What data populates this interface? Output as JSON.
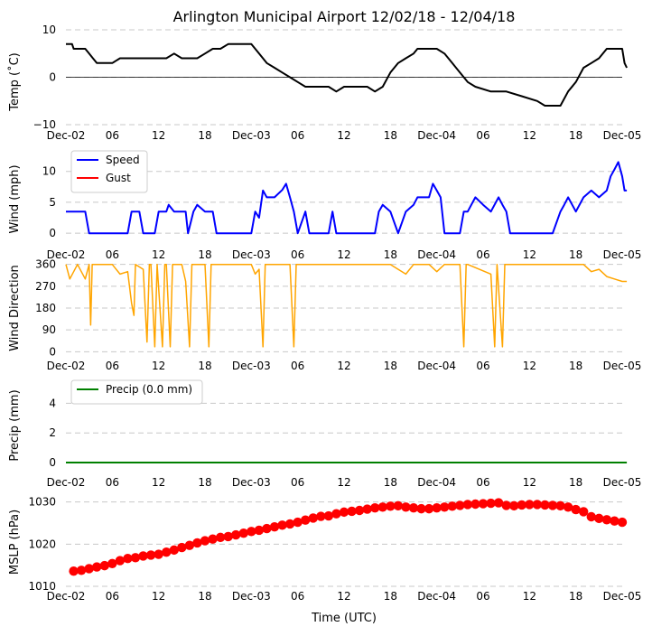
{
  "title": "Arlington Municipal Airport 12/02/18 - 12/04/18",
  "xlabel": "Time (UTC)",
  "colors": {
    "temp": "#000000",
    "speed": "#0000ff",
    "gust": "#ff0000",
    "direction": "#ffa500",
    "precip": "#008000",
    "mslp": "#ff0000"
  },
  "chart_data": [
    {
      "type": "line",
      "id": "temp",
      "ylabel": "Temp ($^\\circ$C)",
      "ylabel_text": "Temp (˚C)",
      "ylim": [
        -10,
        10
      ],
      "yticks": [
        "10",
        "0",
        "−10"
      ],
      "ytick_values": [
        10,
        0,
        -10
      ],
      "hline": 0,
      "xlim_hours": [
        0,
        72
      ],
      "xtick_labels": [
        "Dec-02",
        "06",
        "12",
        "18",
        "Dec-03",
        "06",
        "12",
        "18",
        "Dec-04",
        "06",
        "12",
        "18",
        "Dec-05"
      ],
      "series": [
        {
          "name": "Temp",
          "points": [
            [
              0,
              7
            ],
            [
              0.8,
              7
            ],
            [
              1,
              6
            ],
            [
              2.5,
              6
            ],
            [
              3,
              5
            ],
            [
              3.5,
              4
            ],
            [
              4,
              3
            ],
            [
              6,
              3
            ],
            [
              7,
              4
            ],
            [
              9,
              4
            ],
            [
              13,
              4
            ],
            [
              14,
              5
            ],
            [
              15,
              4
            ],
            [
              17,
              4
            ],
            [
              18,
              5
            ],
            [
              19,
              6
            ],
            [
              20,
              6
            ],
            [
              21,
              7
            ],
            [
              24,
              7
            ],
            [
              24.5,
              6
            ],
            [
              25,
              5
            ],
            [
              26,
              3
            ],
            [
              27,
              2
            ],
            [
              28,
              1
            ],
            [
              29,
              0
            ],
            [
              30,
              -1
            ],
            [
              31,
              -2
            ],
            [
              34,
              -2
            ],
            [
              35,
              -3
            ],
            [
              36,
              -2
            ],
            [
              39,
              -2
            ],
            [
              40,
              -3
            ],
            [
              41,
              -2
            ],
            [
              42,
              1
            ],
            [
              43,
              3
            ],
            [
              44,
              4
            ],
            [
              45,
              5
            ],
            [
              45.5,
              6
            ],
            [
              48,
              6
            ],
            [
              49,
              5
            ],
            [
              50,
              3
            ],
            [
              51,
              1
            ],
            [
              52,
              -1
            ],
            [
              53,
              -2
            ],
            [
              55,
              -3
            ],
            [
              56,
              -3
            ],
            [
              57,
              -3
            ],
            [
              59,
              -4
            ],
            [
              61,
              -5
            ],
            [
              62,
              -6
            ],
            [
              64,
              -6
            ],
            [
              65,
              -3
            ],
            [
              66,
              -1
            ],
            [
              67,
              2
            ],
            [
              68,
              3
            ],
            [
              69,
              4
            ],
            [
              70,
              6
            ],
            [
              72,
              6
            ],
            [
              72.3,
              3
            ],
            [
              72.6,
              2
            ]
          ]
        }
      ]
    },
    {
      "type": "line",
      "id": "wind",
      "ylabel": "Wind (mph)",
      "ylim": [
        -1,
        12
      ],
      "yticks": [
        "10",
        "5",
        "0"
      ],
      "ytick_values": [
        10,
        5,
        0
      ],
      "xlim_hours": [
        0,
        72
      ],
      "xtick_labels": [
        "Dec-02",
        "06",
        "12",
        "18",
        "Dec-03",
        "06",
        "12",
        "18",
        "Dec-04",
        "06",
        "12",
        "18",
        "Dec-05"
      ],
      "legend": [
        "Speed",
        "Gust"
      ],
      "series": [
        {
          "name": "Speed",
          "points": [
            [
              0,
              3.5
            ],
            [
              2.5,
              3.5
            ],
            [
              3,
              0
            ],
            [
              8,
              0
            ],
            [
              8.5,
              3.5
            ],
            [
              9.5,
              3.5
            ],
            [
              10,
              0
            ],
            [
              11.5,
              0
            ],
            [
              12,
              3.5
            ],
            [
              13,
              3.5
            ],
            [
              13.3,
              4.6
            ],
            [
              14,
              3.5
            ],
            [
              15.5,
              3.5
            ],
            [
              15.8,
              0
            ],
            [
              16.5,
              3.5
            ],
            [
              17,
              4.6
            ],
            [
              18,
              3.5
            ],
            [
              19,
              3.5
            ],
            [
              19.5,
              0
            ],
            [
              24,
              0
            ],
            [
              24.5,
              3.5
            ],
            [
              25,
              2.5
            ],
            [
              25.5,
              6.9
            ],
            [
              26,
              5.8
            ],
            [
              27,
              5.8
            ],
            [
              28,
              7.0
            ],
            [
              28.5,
              8.0
            ],
            [
              29,
              5.8
            ],
            [
              29.5,
              3.5
            ],
            [
              30,
              0
            ],
            [
              31,
              3.5
            ],
            [
              31.5,
              0
            ],
            [
              34,
              0
            ],
            [
              34.5,
              3.5
            ],
            [
              35,
              0
            ],
            [
              40,
              0
            ],
            [
              40.5,
              3.5
            ],
            [
              41,
              4.6
            ],
            [
              42,
              3.5
            ],
            [
              43,
              0
            ],
            [
              44,
              3.5
            ],
            [
              45,
              4.6
            ],
            [
              45.5,
              5.8
            ],
            [
              47,
              5.8
            ],
            [
              47.5,
              8.0
            ],
            [
              48,
              6.9
            ],
            [
              48.5,
              5.8
            ],
            [
              49,
              0
            ],
            [
              51,
              0
            ],
            [
              51.5,
              3.5
            ],
            [
              52,
              3.5
            ],
            [
              53,
              5.8
            ],
            [
              54,
              4.6
            ],
            [
              55,
              3.5
            ],
            [
              56,
              5.8
            ],
            [
              56.5,
              4.6
            ],
            [
              57,
              3.5
            ],
            [
              57.5,
              0
            ],
            [
              63,
              0
            ],
            [
              64,
              3.5
            ],
            [
              64.5,
              4.6
            ],
            [
              65,
              5.8
            ],
            [
              66,
              3.5
            ],
            [
              67,
              5.8
            ],
            [
              68,
              6.9
            ],
            [
              69,
              5.8
            ],
            [
              70,
              6.9
            ],
            [
              70.5,
              9.2
            ],
            [
              71,
              10.3
            ],
            [
              71.5,
              11.5
            ],
            [
              72,
              9.2
            ],
            [
              72.3,
              6.9
            ],
            [
              72.6,
              6.9
            ]
          ]
        },
        {
          "name": "Gust",
          "points": []
        }
      ]
    },
    {
      "type": "line",
      "id": "direction",
      "ylabel": "Wind Direction",
      "ylim": [
        -10,
        370
      ],
      "yticks": [
        "360",
        "270",
        "180",
        "90",
        "0"
      ],
      "ytick_values": [
        360,
        270,
        180,
        90,
        0
      ],
      "xlim_hours": [
        0,
        72
      ],
      "xtick_labels": [
        "Dec-02",
        "06",
        "12",
        "18",
        "Dec-03",
        "06",
        "12",
        "18",
        "Dec-04",
        "06",
        "12",
        "18",
        "Dec-05"
      ],
      "series": [
        {
          "name": "Direction",
          "points": [
            [
              0,
              360
            ],
            [
              0.5,
              300
            ],
            [
              1,
              330
            ],
            [
              1.5,
              360
            ],
            [
              2,
              330
            ],
            [
              2.5,
              300
            ],
            [
              3,
              360
            ],
            [
              3.2,
              110
            ],
            [
              3.4,
              360
            ],
            [
              6,
              360
            ],
            [
              7,
              320
            ],
            [
              8,
              330
            ],
            [
              8.5,
              200
            ],
            [
              8.8,
              150
            ],
            [
              9,
              360
            ],
            [
              10,
              340
            ],
            [
              10.5,
              40
            ],
            [
              10.8,
              360
            ],
            [
              11,
              360
            ],
            [
              11.5,
              20
            ],
            [
              11.8,
              360
            ],
            [
              12.5,
              20
            ],
            [
              12.8,
              360
            ],
            [
              13,
              360
            ],
            [
              13.5,
              20
            ],
            [
              13.8,
              360
            ],
            [
              15,
              360
            ],
            [
              15.5,
              290
            ],
            [
              16,
              20
            ],
            [
              16.3,
              360
            ],
            [
              18,
              360
            ],
            [
              18.5,
              20
            ],
            [
              18.8,
              360
            ],
            [
              24,
              360
            ],
            [
              24.5,
              320
            ],
            [
              25,
              340
            ],
            [
              25.5,
              20
            ],
            [
              25.8,
              360
            ],
            [
              27,
              360
            ],
            [
              29,
              360
            ],
            [
              29.5,
              20
            ],
            [
              29.8,
              360
            ],
            [
              42,
              360
            ],
            [
              43,
              340
            ],
            [
              44,
              320
            ],
            [
              45,
              360
            ],
            [
              47,
              360
            ],
            [
              48,
              330
            ],
            [
              49,
              360
            ],
            [
              51,
              360
            ],
            [
              51.5,
              20
            ],
            [
              51.8,
              360
            ],
            [
              52,
              360
            ],
            [
              55,
              320
            ],
            [
              55.5,
              20
            ],
            [
              55.8,
              360
            ],
            [
              56.5,
              20
            ],
            [
              56.8,
              360
            ],
            [
              67,
              360
            ],
            [
              68,
              330
            ],
            [
              69,
              340
            ],
            [
              70,
              310
            ],
            [
              71,
              300
            ],
            [
              72,
              290
            ],
            [
              72.6,
              290
            ]
          ]
        }
      ]
    },
    {
      "type": "line",
      "id": "precip",
      "ylabel": "Precip (mm)",
      "ylim": [
        0,
        5
      ],
      "yticks": [
        "4",
        "2",
        "0"
      ],
      "ytick_values": [
        4,
        2,
        0
      ],
      "xlim_hours": [
        0,
        72
      ],
      "xtick_labels": [
        "Dec-02",
        "06",
        "12",
        "18",
        "Dec-03",
        "06",
        "12",
        "18",
        "Dec-04",
        "06",
        "12",
        "18",
        "Dec-05"
      ],
      "legend": [
        "Precip (0.0 mm)"
      ],
      "series": [
        {
          "name": "Precip (0.0 mm)",
          "points": [
            [
              0,
              0
            ],
            [
              72.6,
              0
            ]
          ]
        }
      ]
    },
    {
      "type": "scatter",
      "id": "mslp",
      "ylabel": "MSLP (hPa)",
      "ylim": [
        1010,
        1031
      ],
      "yticks": [
        "1030",
        "1020",
        "1010"
      ],
      "ytick_values": [
        1030,
        1020,
        1010
      ],
      "xlim_hours": [
        0,
        72
      ],
      "xtick_labels": [
        "Dec-02",
        "06",
        "12",
        "18",
        "Dec-03",
        "06",
        "12",
        "18",
        "Dec-04",
        "06",
        "12",
        "18",
        "Dec-05"
      ],
      "series": [
        {
          "name": "MSLP",
          "x": [
            1,
            2,
            3,
            4,
            5,
            6,
            7,
            8,
            9,
            10,
            11,
            12,
            13,
            14,
            15,
            16,
            17,
            18,
            19,
            20,
            21,
            22,
            23,
            24,
            25,
            26,
            27,
            28,
            29,
            30,
            31,
            32,
            33,
            34,
            35,
            36,
            37,
            38,
            39,
            40,
            41,
            42,
            43,
            44,
            45,
            46,
            47,
            48,
            49,
            50,
            51,
            52,
            53,
            54,
            55,
            56,
            57,
            58,
            59,
            60,
            61,
            62,
            63,
            64,
            65,
            66,
            67,
            68,
            69,
            70,
            71,
            72
          ],
          "y": [
            1013.6,
            1013.8,
            1014.2,
            1014.6,
            1014.9,
            1015.4,
            1016.1,
            1016.6,
            1016.8,
            1017.2,
            1017.4,
            1017.6,
            1018.1,
            1018.6,
            1019.2,
            1019.7,
            1020.3,
            1020.8,
            1021.2,
            1021.6,
            1021.8,
            1022.2,
            1022.6,
            1023.0,
            1023.3,
            1023.7,
            1024.1,
            1024.5,
            1024.8,
            1025.2,
            1025.7,
            1026.2,
            1026.6,
            1026.7,
            1027.2,
            1027.6,
            1027.8,
            1028.0,
            1028.3,
            1028.6,
            1028.8,
            1029.0,
            1029.1,
            1028.8,
            1028.6,
            1028.4,
            1028.4,
            1028.6,
            1028.8,
            1029.0,
            1029.2,
            1029.4,
            1029.5,
            1029.6,
            1029.7,
            1029.8,
            1029.2,
            1029.1,
            1029.3,
            1029.4,
            1029.4,
            1029.3,
            1029.2,
            1029.1,
            1028.8,
            1028.2,
            1027.7,
            1026.5,
            1026.1,
            1025.8,
            1025.5,
            1025.2
          ]
        }
      ]
    }
  ]
}
